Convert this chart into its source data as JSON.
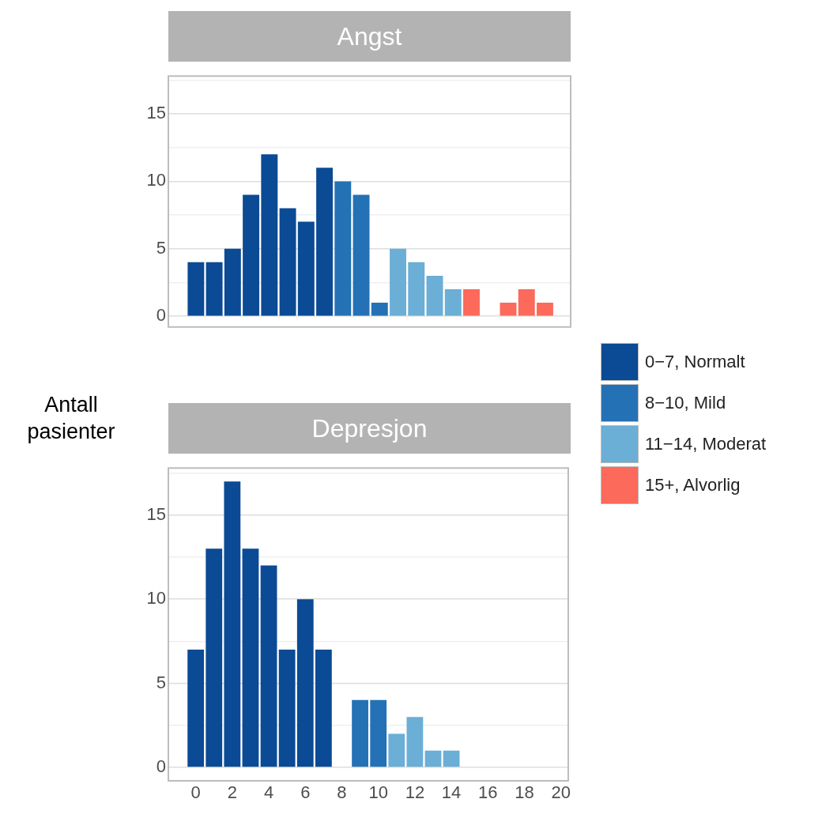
{
  "chart_data": [
    {
      "type": "bar",
      "title": "Angst",
      "ylabel": "Antall pasienter",
      "x": [
        0,
        1,
        2,
        3,
        4,
        5,
        6,
        7,
        8,
        9,
        10,
        11,
        12,
        13,
        14,
        15,
        16,
        17,
        18,
        19
      ],
      "series": [
        {
          "name": "0−7, Normalt",
          "color": "#0b4a94",
          "values": [
            4,
            4,
            5,
            9,
            12,
            8,
            7,
            11,
            null,
            null,
            null,
            null,
            null,
            null,
            null,
            null,
            null,
            null,
            null,
            null
          ]
        },
        {
          "name": "8−10, Mild",
          "color": "#2471b5",
          "values": [
            null,
            null,
            null,
            null,
            null,
            null,
            null,
            null,
            10,
            9,
            1,
            null,
            null,
            null,
            null,
            null,
            null,
            null,
            null,
            null
          ]
        },
        {
          "name": "11−14, Moderat",
          "color": "#6baed6",
          "values": [
            null,
            null,
            null,
            null,
            null,
            null,
            null,
            null,
            null,
            null,
            null,
            5,
            4,
            3,
            2,
            null,
            null,
            null,
            null,
            null
          ]
        },
        {
          "name": "15+, Alvorlig",
          "color": "#fb6a5a",
          "values": [
            null,
            null,
            null,
            null,
            null,
            null,
            null,
            null,
            null,
            null,
            null,
            null,
            null,
            null,
            null,
            2,
            null,
            1,
            2,
            1
          ]
        }
      ],
      "xlim": [
        -1.5,
        20.4
      ],
      "ylim": [
        -0.8,
        17.8
      ],
      "xticks": [
        0,
        2,
        4,
        6,
        8,
        10,
        12,
        14,
        16,
        18,
        20
      ],
      "yticks": [
        0,
        {
          "value": 2.5,
          "label": null
        },
        5,
        {
          "value": 7.5,
          "label": null
        },
        10,
        {
          "value": 12.5,
          "label": null
        },
        15,
        {
          "value": 17.5,
          "label": null
        }
      ],
      "grid": "y",
      "legend": "right",
      "tick_labels": "y"
    },
    {
      "type": "bar",
      "title": "Depresjon",
      "x": [
        0,
        1,
        2,
        3,
        4,
        5,
        6,
        7,
        8,
        9,
        10,
        11,
        12,
        13,
        14
      ],
      "series": [
        {
          "color": "#0b4a94",
          "values": [
            7,
            13,
            17,
            13,
            12,
            7,
            10,
            7,
            null,
            null,
            null,
            null,
            null,
            null,
            null
          ]
        },
        {
          "color": "#2471b5",
          "values": [
            null,
            null,
            null,
            null,
            null,
            null,
            null,
            null,
            null,
            4,
            4,
            null,
            null,
            null,
            null
          ]
        },
        {
          "color": "#6baed6",
          "values": [
            null,
            null,
            null,
            null,
            null,
            null,
            null,
            null,
            null,
            null,
            null,
            2,
            3,
            1,
            1
          ]
        }
      ],
      "xlim": [
        -1.5,
        20.4
      ],
      "ylim": [
        -0.8,
        17.8
      ],
      "xticks": [
        0,
        2,
        4,
        6,
        8,
        10,
        12,
        14,
        16,
        18,
        20
      ],
      "yticks": [
        0,
        {
          "value": 2.5,
          "label": null
        },
        5,
        {
          "value": 7.5,
          "label": null
        },
        10,
        {
          "value": 12.5,
          "label": null
        },
        15,
        {
          "value": 17.5,
          "label": null
        }
      ],
      "grid": "y"
    }
  ]
}
